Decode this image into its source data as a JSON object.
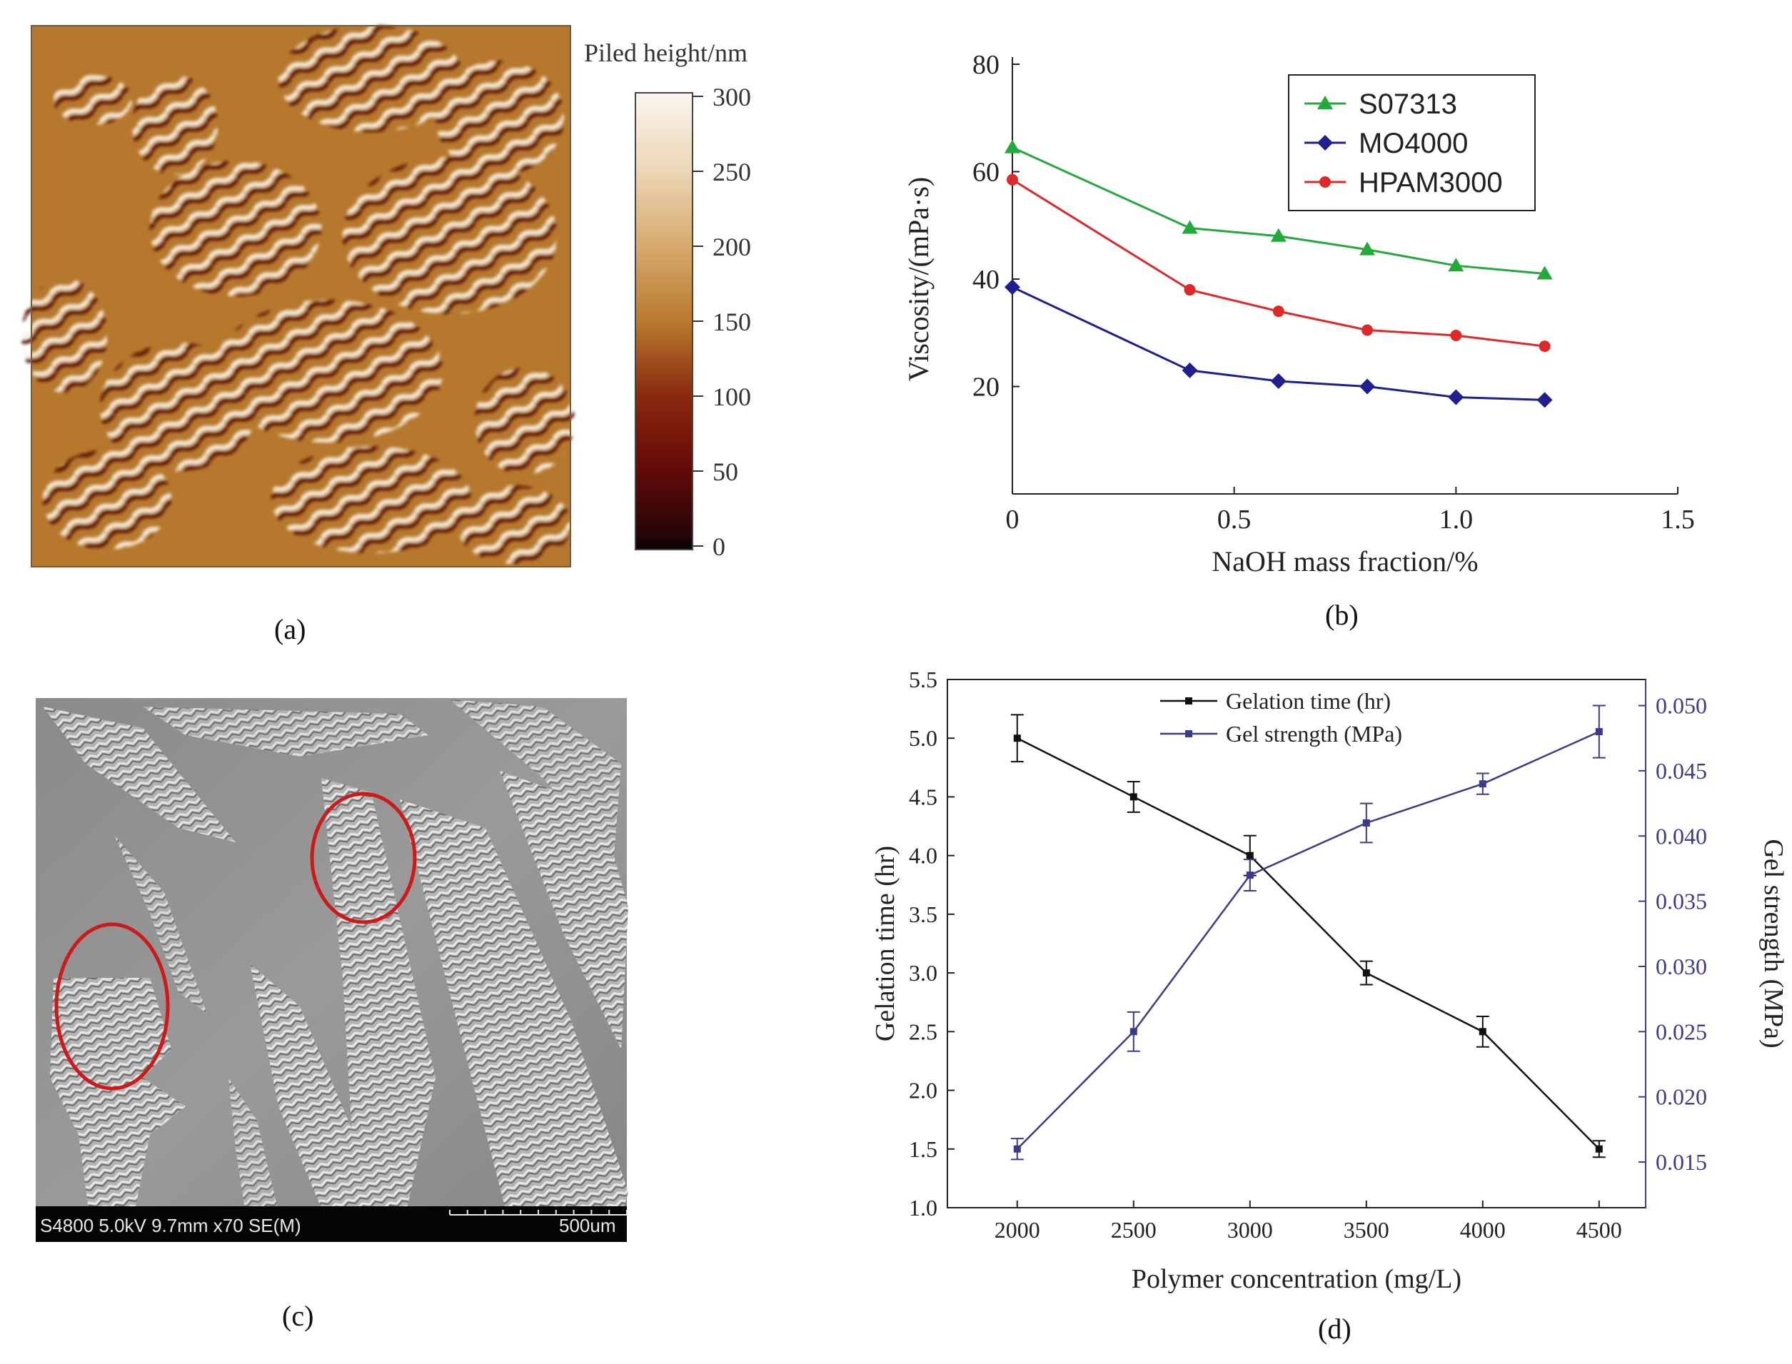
{
  "panels": {
    "a": {
      "caption": "(a)",
      "colorbar": {
        "title": "Piled height/nm",
        "ticks": [
          "300",
          "250",
          "200",
          "150",
          "100",
          "50",
          "0"
        ],
        "range": [
          0,
          300
        ]
      }
    },
    "b": {
      "caption": "(b)"
    },
    "c": {
      "caption": "(c)",
      "info_bar": "S4800 5.0kV 9.7mm x70 SE(M)",
      "scale_label": "500um"
    },
    "d": {
      "caption": "(d)"
    }
  },
  "colors": {
    "afm_low": "#1a0a06",
    "afm_mid": "#6b0c08",
    "afm_base": "#b87a2e",
    "afm_high": "#f8f4ee",
    "s07313": "#22aa3a",
    "mo4000": "#1f1f8f",
    "hpam3000": "#e02828",
    "gelation": "#111111",
    "gel_strength": "#3b3b8c"
  },
  "chart_data": [
    {
      "id": "b",
      "type": "line",
      "title": "",
      "xlabel": "NaOH mass fraction/%",
      "ylabel": "Viscosity/(mPa·s)",
      "xlim": [
        0,
        1.5
      ],
      "ylim": [
        0,
        80
      ],
      "xticks": [
        "0",
        "0.5",
        "1.0",
        "1.5"
      ],
      "yticks": [
        "20",
        "40",
        "60",
        "80"
      ],
      "legend_position": "top-right",
      "series": [
        {
          "name": "S07313",
          "marker": "triangle",
          "x": [
            0,
            0.4,
            0.6,
            0.8,
            1.0,
            1.2
          ],
          "y": [
            64.5,
            49.5,
            48,
            45.5,
            42.5,
            41
          ]
        },
        {
          "name": "MO4000",
          "marker": "diamond",
          "x": [
            0,
            0.4,
            0.6,
            0.8,
            1.0,
            1.2
          ],
          "y": [
            38.5,
            23,
            21,
            20,
            18,
            17.5
          ]
        },
        {
          "name": "HPAM3000",
          "marker": "circle",
          "x": [
            0,
            0.4,
            0.6,
            0.8,
            1.0,
            1.2
          ],
          "y": [
            58.5,
            38,
            34,
            30.5,
            29.5,
            27.5
          ]
        }
      ]
    },
    {
      "id": "d",
      "type": "line",
      "title": "",
      "xlabel": "Polymer concentration (mg/L)",
      "ylabel": "Gelation time (hr)",
      "y2label": "Gel strength (MPa)",
      "xlim": [
        1700,
        4700
      ],
      "ylim": [
        1.0,
        5.5
      ],
      "y2lim": [
        0.0115,
        0.052
      ],
      "xticks": [
        "2000",
        "2500",
        "3000",
        "3500",
        "4000",
        "4500"
      ],
      "yticks": [
        "1.0",
        "1.5",
        "2.0",
        "2.5",
        "3.0",
        "3.5",
        "4.0",
        "4.5",
        "5.0",
        "5.5"
      ],
      "y2ticks": [
        "0.015",
        "0.020",
        "0.025",
        "0.030",
        "0.035",
        "0.040",
        "0.045",
        "0.050"
      ],
      "legend_position": "top-center",
      "series": [
        {
          "name": "Gelation time (hr)",
          "axis": "left",
          "x": [
            2000,
            2500,
            3000,
            3500,
            4000,
            4500
          ],
          "y": [
            5.0,
            4.5,
            4.0,
            3.0,
            2.5,
            1.5
          ],
          "err": [
            0.2,
            0.13,
            0.17,
            0.1,
            0.13,
            0.07
          ]
        },
        {
          "name": "Gel strength (MPa)",
          "axis": "right",
          "x": [
            2000,
            2500,
            3000,
            3500,
            4000,
            4500
          ],
          "y": [
            0.016,
            0.025,
            0.037,
            0.041,
            0.044,
            0.048
          ],
          "err": [
            0.0008,
            0.0015,
            0.0012,
            0.0015,
            0.0008,
            0.002
          ]
        }
      ]
    }
  ]
}
